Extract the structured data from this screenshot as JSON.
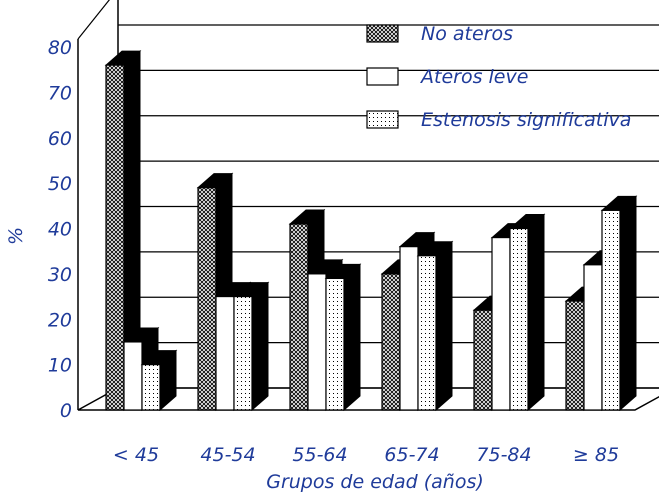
{
  "chart_data": {
    "type": "bar",
    "ylabel": "%",
    "xlabel": "Grupos de edad (años)",
    "categories": [
      "< 45",
      "45-54",
      "55-64",
      "65-74",
      "75-84",
      "≥ 85"
    ],
    "ylim": [
      0,
      80
    ],
    "yticks": [
      "0",
      "10",
      "20",
      "30",
      "40",
      "50",
      "60",
      "70",
      "80"
    ],
    "grid": true,
    "legend_position": "top-right",
    "series": [
      {
        "name": "No ateros",
        "pattern": "crosshatch",
        "values": [
          76,
          49,
          41,
          30,
          22,
          24
        ]
      },
      {
        "name": "Ateros leve",
        "pattern": "white",
        "values": [
          15,
          25,
          30,
          36,
          38,
          32
        ]
      },
      {
        "name": "Estenosis significativa",
        "pattern": "dots",
        "values": [
          10,
          25,
          29,
          34,
          40,
          44
        ]
      }
    ]
  }
}
